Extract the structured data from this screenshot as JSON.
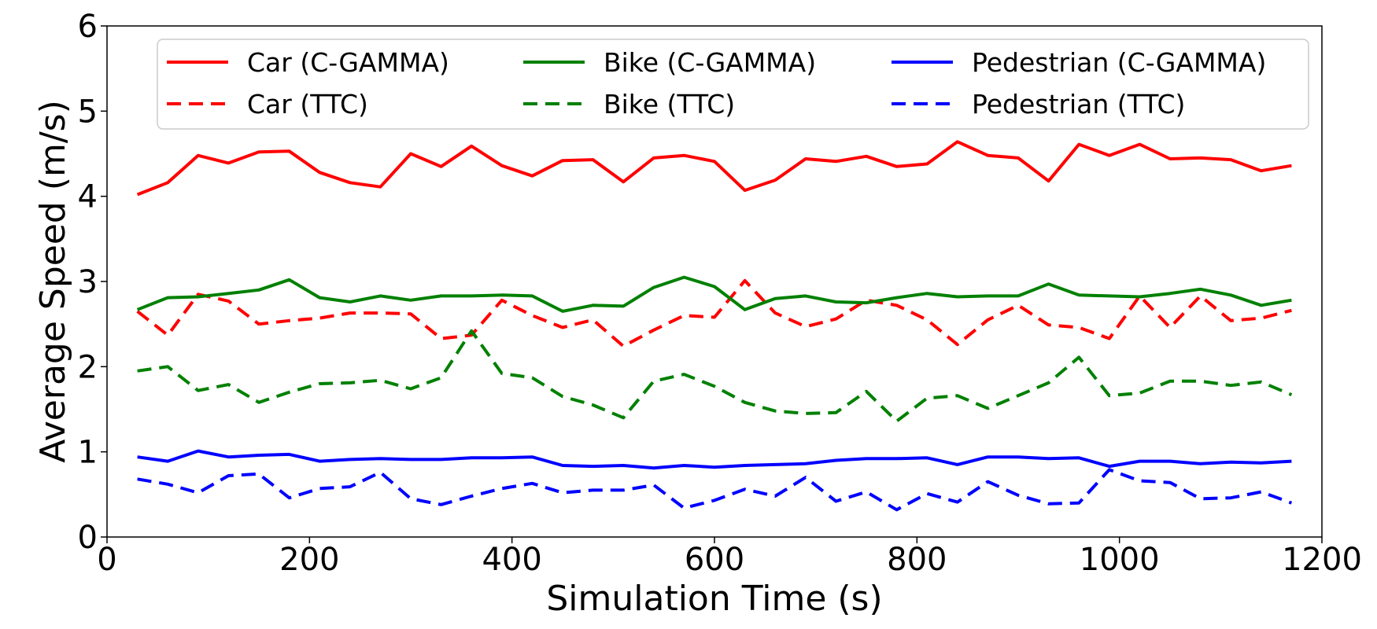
{
  "chart_data": {
    "type": "line",
    "title": "",
    "xlabel": "Simulation Time (s)",
    "ylabel": "Average Speed (m/s)",
    "xlim": [
      0,
      1200
    ],
    "ylim": [
      0,
      6
    ],
    "xticks": [
      0,
      200,
      400,
      600,
      800,
      1000,
      1200
    ],
    "yticks": [
      0,
      1,
      2,
      3,
      4,
      5,
      6
    ],
    "grid": false,
    "legend_position": "top",
    "x": [
      30,
      60,
      90,
      120,
      150,
      180,
      210,
      240,
      270,
      300,
      330,
      360,
      390,
      420,
      450,
      480,
      510,
      540,
      570,
      600,
      630,
      660,
      690,
      720,
      750,
      780,
      810,
      840,
      870,
      900,
      930,
      960,
      990,
      1020,
      1050,
      1080,
      1110,
      1140,
      1170
    ],
    "series": [
      {
        "name": "Car (C-GAMMA)",
        "color": "#ff0000",
        "style": "solid",
        "values": [
          4.02,
          4.16,
          4.48,
          4.39,
          4.52,
          4.53,
          4.28,
          4.16,
          4.11,
          4.5,
          4.35,
          4.59,
          4.36,
          4.24,
          4.42,
          4.43,
          4.17,
          4.45,
          4.48,
          4.41,
          4.07,
          4.19,
          4.44,
          4.41,
          4.47,
          4.35,
          4.38,
          4.64,
          4.48,
          4.45,
          4.18,
          4.61,
          4.48,
          4.61,
          4.44,
          4.45,
          4.43,
          4.3,
          4.36
        ]
      },
      {
        "name": "Car (TTC)",
        "color": "#ff0000",
        "style": "dashed",
        "values": [
          2.65,
          2.37,
          2.85,
          2.77,
          2.5,
          2.54,
          2.57,
          2.63,
          2.63,
          2.62,
          2.33,
          2.37,
          2.78,
          2.6,
          2.46,
          2.55,
          2.24,
          2.43,
          2.6,
          2.58,
          3.01,
          2.63,
          2.47,
          2.56,
          2.78,
          2.72,
          2.55,
          2.26,
          2.55,
          2.72,
          2.49,
          2.46,
          2.33,
          2.83,
          2.46,
          2.83,
          2.54,
          2.57,
          2.66
        ]
      },
      {
        "name": "Bike (C-GAMMA)",
        "color": "#008000",
        "style": "solid",
        "values": [
          2.67,
          2.81,
          2.82,
          2.86,
          2.9,
          3.02,
          2.81,
          2.76,
          2.83,
          2.78,
          2.83,
          2.83,
          2.84,
          2.83,
          2.65,
          2.72,
          2.71,
          2.93,
          3.05,
          2.94,
          2.67,
          2.8,
          2.83,
          2.76,
          2.75,
          2.81,
          2.86,
          2.82,
          2.83,
          2.83,
          2.97,
          2.84,
          2.83,
          2.82,
          2.86,
          2.91,
          2.84,
          2.72,
          2.78
        ]
      },
      {
        "name": "Bike (TTC)",
        "color": "#008000",
        "style": "dashed",
        "values": [
          1.95,
          2.0,
          1.72,
          1.79,
          1.58,
          1.7,
          1.8,
          1.81,
          1.84,
          1.74,
          1.87,
          2.42,
          1.92,
          1.87,
          1.65,
          1.55,
          1.4,
          1.83,
          1.91,
          1.77,
          1.58,
          1.48,
          1.45,
          1.46,
          1.71,
          1.36,
          1.63,
          1.66,
          1.51,
          1.66,
          1.81,
          2.11,
          1.66,
          1.69,
          1.83,
          1.83,
          1.78,
          1.82,
          1.67
        ]
      },
      {
        "name": "Pedestrian (C-GAMMA)",
        "color": "#0000ff",
        "style": "solid",
        "values": [
          0.94,
          0.89,
          1.01,
          0.94,
          0.96,
          0.97,
          0.89,
          0.91,
          0.92,
          0.91,
          0.91,
          0.93,
          0.93,
          0.94,
          0.84,
          0.83,
          0.84,
          0.81,
          0.84,
          0.82,
          0.84,
          0.85,
          0.86,
          0.9,
          0.92,
          0.92,
          0.93,
          0.85,
          0.94,
          0.94,
          0.92,
          0.93,
          0.83,
          0.89,
          0.89,
          0.86,
          0.88,
          0.87,
          0.89
        ]
      },
      {
        "name": "Pedestrian (TTC)",
        "color": "#0000ff",
        "style": "dashed",
        "values": [
          0.68,
          0.62,
          0.52,
          0.72,
          0.74,
          0.46,
          0.57,
          0.59,
          0.76,
          0.45,
          0.38,
          0.48,
          0.57,
          0.63,
          0.52,
          0.55,
          0.55,
          0.61,
          0.34,
          0.43,
          0.56,
          0.48,
          0.7,
          0.42,
          0.53,
          0.32,
          0.51,
          0.41,
          0.65,
          0.49,
          0.39,
          0.4,
          0.79,
          0.66,
          0.64,
          0.45,
          0.46,
          0.53,
          0.4
        ]
      }
    ]
  }
}
